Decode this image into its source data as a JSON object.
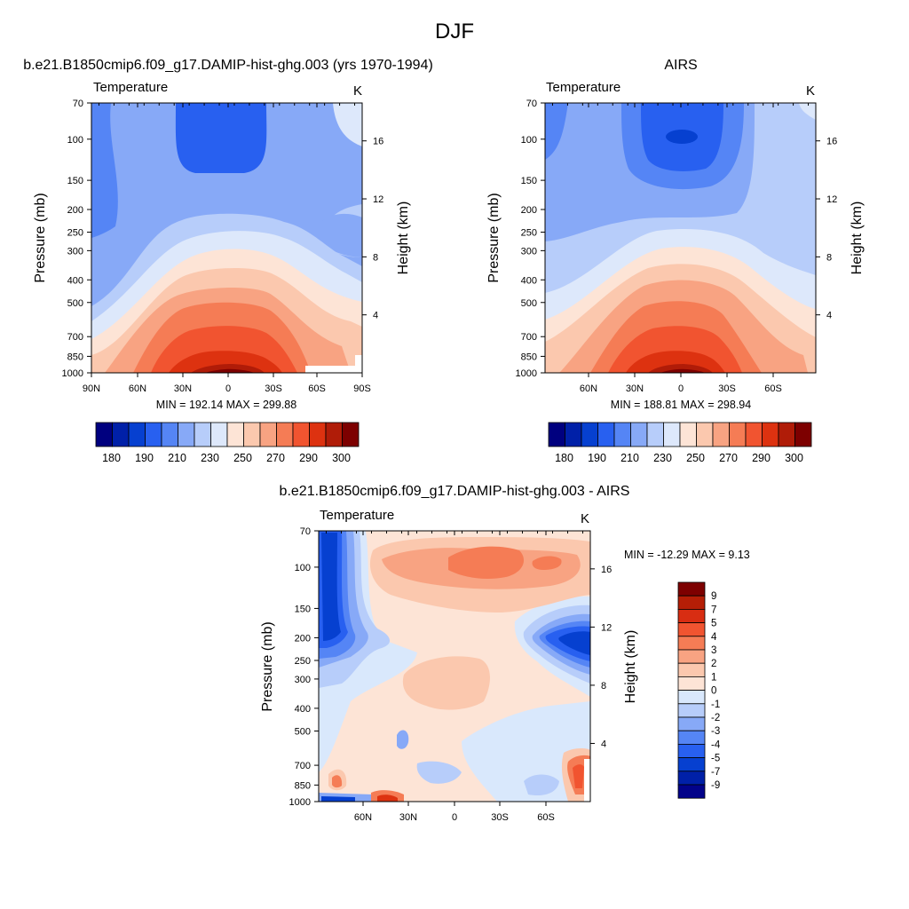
{
  "figure": {
    "title": "DJF"
  },
  "colors": {
    "temp_scale": [
      "#00007f",
      "#0020a8",
      "#0640d0",
      "#2860f0",
      "#5585f5",
      "#87a9f7",
      "#b7cdfa",
      "#dde8fb",
      "#fde4d6",
      "#fbc8ae",
      "#f8a382",
      "#f57c55",
      "#f15430",
      "#dd3210",
      "#b01c08",
      "#7d0000"
    ],
    "diff_scale": [
      "#02028a",
      "#0020a8",
      "#0640d0",
      "#2860f0",
      "#5585f5",
      "#87a9f7",
      "#b7cdfa",
      "#d9e8fc",
      "#fde4d6",
      "#fbc8ae",
      "#f8a382",
      "#f57c55",
      "#f15430",
      "#d82d12",
      "#b51e06",
      "#7d0000"
    ]
  },
  "chart_data": [
    {
      "type": "heatmap",
      "id": "model",
      "title": "b.e21.B1850cmip6.f09_g17.DAMIP-hist-ghg.003 (yrs 1970-1994)",
      "variable": "Temperature",
      "units": "K",
      "xlabel": "",
      "ylabel": "Pressure (mb)",
      "y2label": "Height (km)",
      "x_ticks": [
        "90N",
        "60N",
        "30N",
        "0",
        "30S",
        "60S",
        "90S"
      ],
      "y_ticks": [
        "70",
        "100",
        "150",
        "200",
        "250",
        "300",
        "400",
        "500",
        "700",
        "850",
        "1000"
      ],
      "y2_ticks": [
        "16",
        "12",
        "8",
        "4"
      ],
      "stats": "MIN = 192.14  MAX = 299.88",
      "min": 192.14,
      "max": 299.88,
      "colorbar_labels": [
        "180",
        "190",
        "210",
        "230",
        "250",
        "270",
        "290",
        "300"
      ]
    },
    {
      "type": "heatmap",
      "id": "obs",
      "title": "AIRS",
      "variable": "Temperature",
      "units": "K",
      "xlabel": "",
      "ylabel": "Pressure (mb)",
      "y2label": "Height (km)",
      "x_ticks": [
        "60N",
        "30N",
        "0",
        "30S",
        "60S"
      ],
      "y_ticks": [
        "70",
        "100",
        "150",
        "200",
        "250",
        "300",
        "400",
        "500",
        "700",
        "850",
        "1000"
      ],
      "y2_ticks": [
        "16",
        "12",
        "8",
        "4"
      ],
      "stats": "MIN = 188.81  MAX = 298.94",
      "min": 188.81,
      "max": 298.94,
      "colorbar_labels": [
        "180",
        "190",
        "210",
        "230",
        "250",
        "270",
        "290",
        "300"
      ]
    },
    {
      "type": "heatmap",
      "id": "diff",
      "title": "b.e21.B1850cmip6.f09_g17.DAMIP-hist-ghg.003 - AIRS",
      "variable": "Temperature",
      "units": "K",
      "xlabel": "",
      "ylabel": "Pressure (mb)",
      "y2label": "Height (km)",
      "x_ticks": [
        "60N",
        "30N",
        "0",
        "30S",
        "60S"
      ],
      "y_ticks": [
        "70",
        "100",
        "150",
        "200",
        "250",
        "300",
        "400",
        "500",
        "700",
        "850",
        "1000"
      ],
      "y2_ticks": [
        "16",
        "12",
        "8",
        "4"
      ],
      "stats": "MIN = -12.29  MAX =   9.13",
      "min": -12.29,
      "max": 9.13,
      "colorbar_labels": [
        "9",
        "7",
        "5",
        "4",
        "3",
        "2",
        "1",
        "0",
        "-1",
        "-2",
        "-3",
        "-4",
        "-5",
        "-7",
        "-9"
      ]
    }
  ]
}
